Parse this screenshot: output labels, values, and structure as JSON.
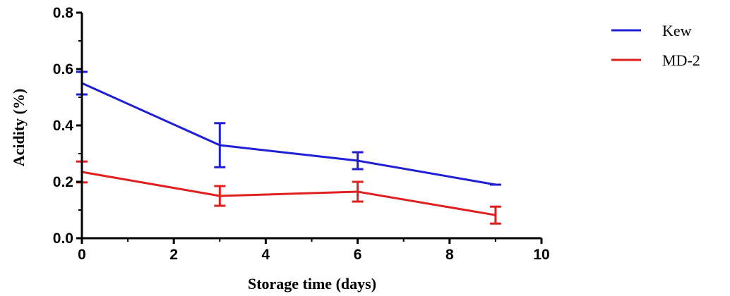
{
  "chart_data": {
    "type": "line",
    "xlabel": "Storage time (days)",
    "ylabel": "Acidity (%)",
    "xlim": [
      0,
      10
    ],
    "ylim": [
      0,
      0.8
    ],
    "x_ticks": [
      "0",
      "2",
      "4",
      "6",
      "8",
      "10"
    ],
    "y_ticks": [
      "0.0",
      "0.2",
      "0.4",
      "0.6",
      "0.8"
    ],
    "x_tick_values": [
      0,
      2,
      4,
      6,
      8,
      10
    ],
    "y_tick_values": [
      0,
      0.2,
      0.4,
      0.6,
      0.8
    ],
    "grid": false,
    "legend_position": "top-right",
    "series": [
      {
        "name": "Kew",
        "color": "#1f1fd6",
        "x": [
          0,
          3,
          6,
          9
        ],
        "y": [
          0.55,
          0.33,
          0.275,
          0.19
        ],
        "error": [
          0.04,
          0.078,
          0.03,
          0
        ]
      },
      {
        "name": "MD-2",
        "color": "#e01f1f",
        "x": [
          0,
          3,
          6,
          9
        ],
        "y": [
          0.235,
          0.15,
          0.165,
          0.082
        ],
        "error": [
          0.037,
          0.035,
          0.035,
          0.03
        ]
      }
    ]
  }
}
